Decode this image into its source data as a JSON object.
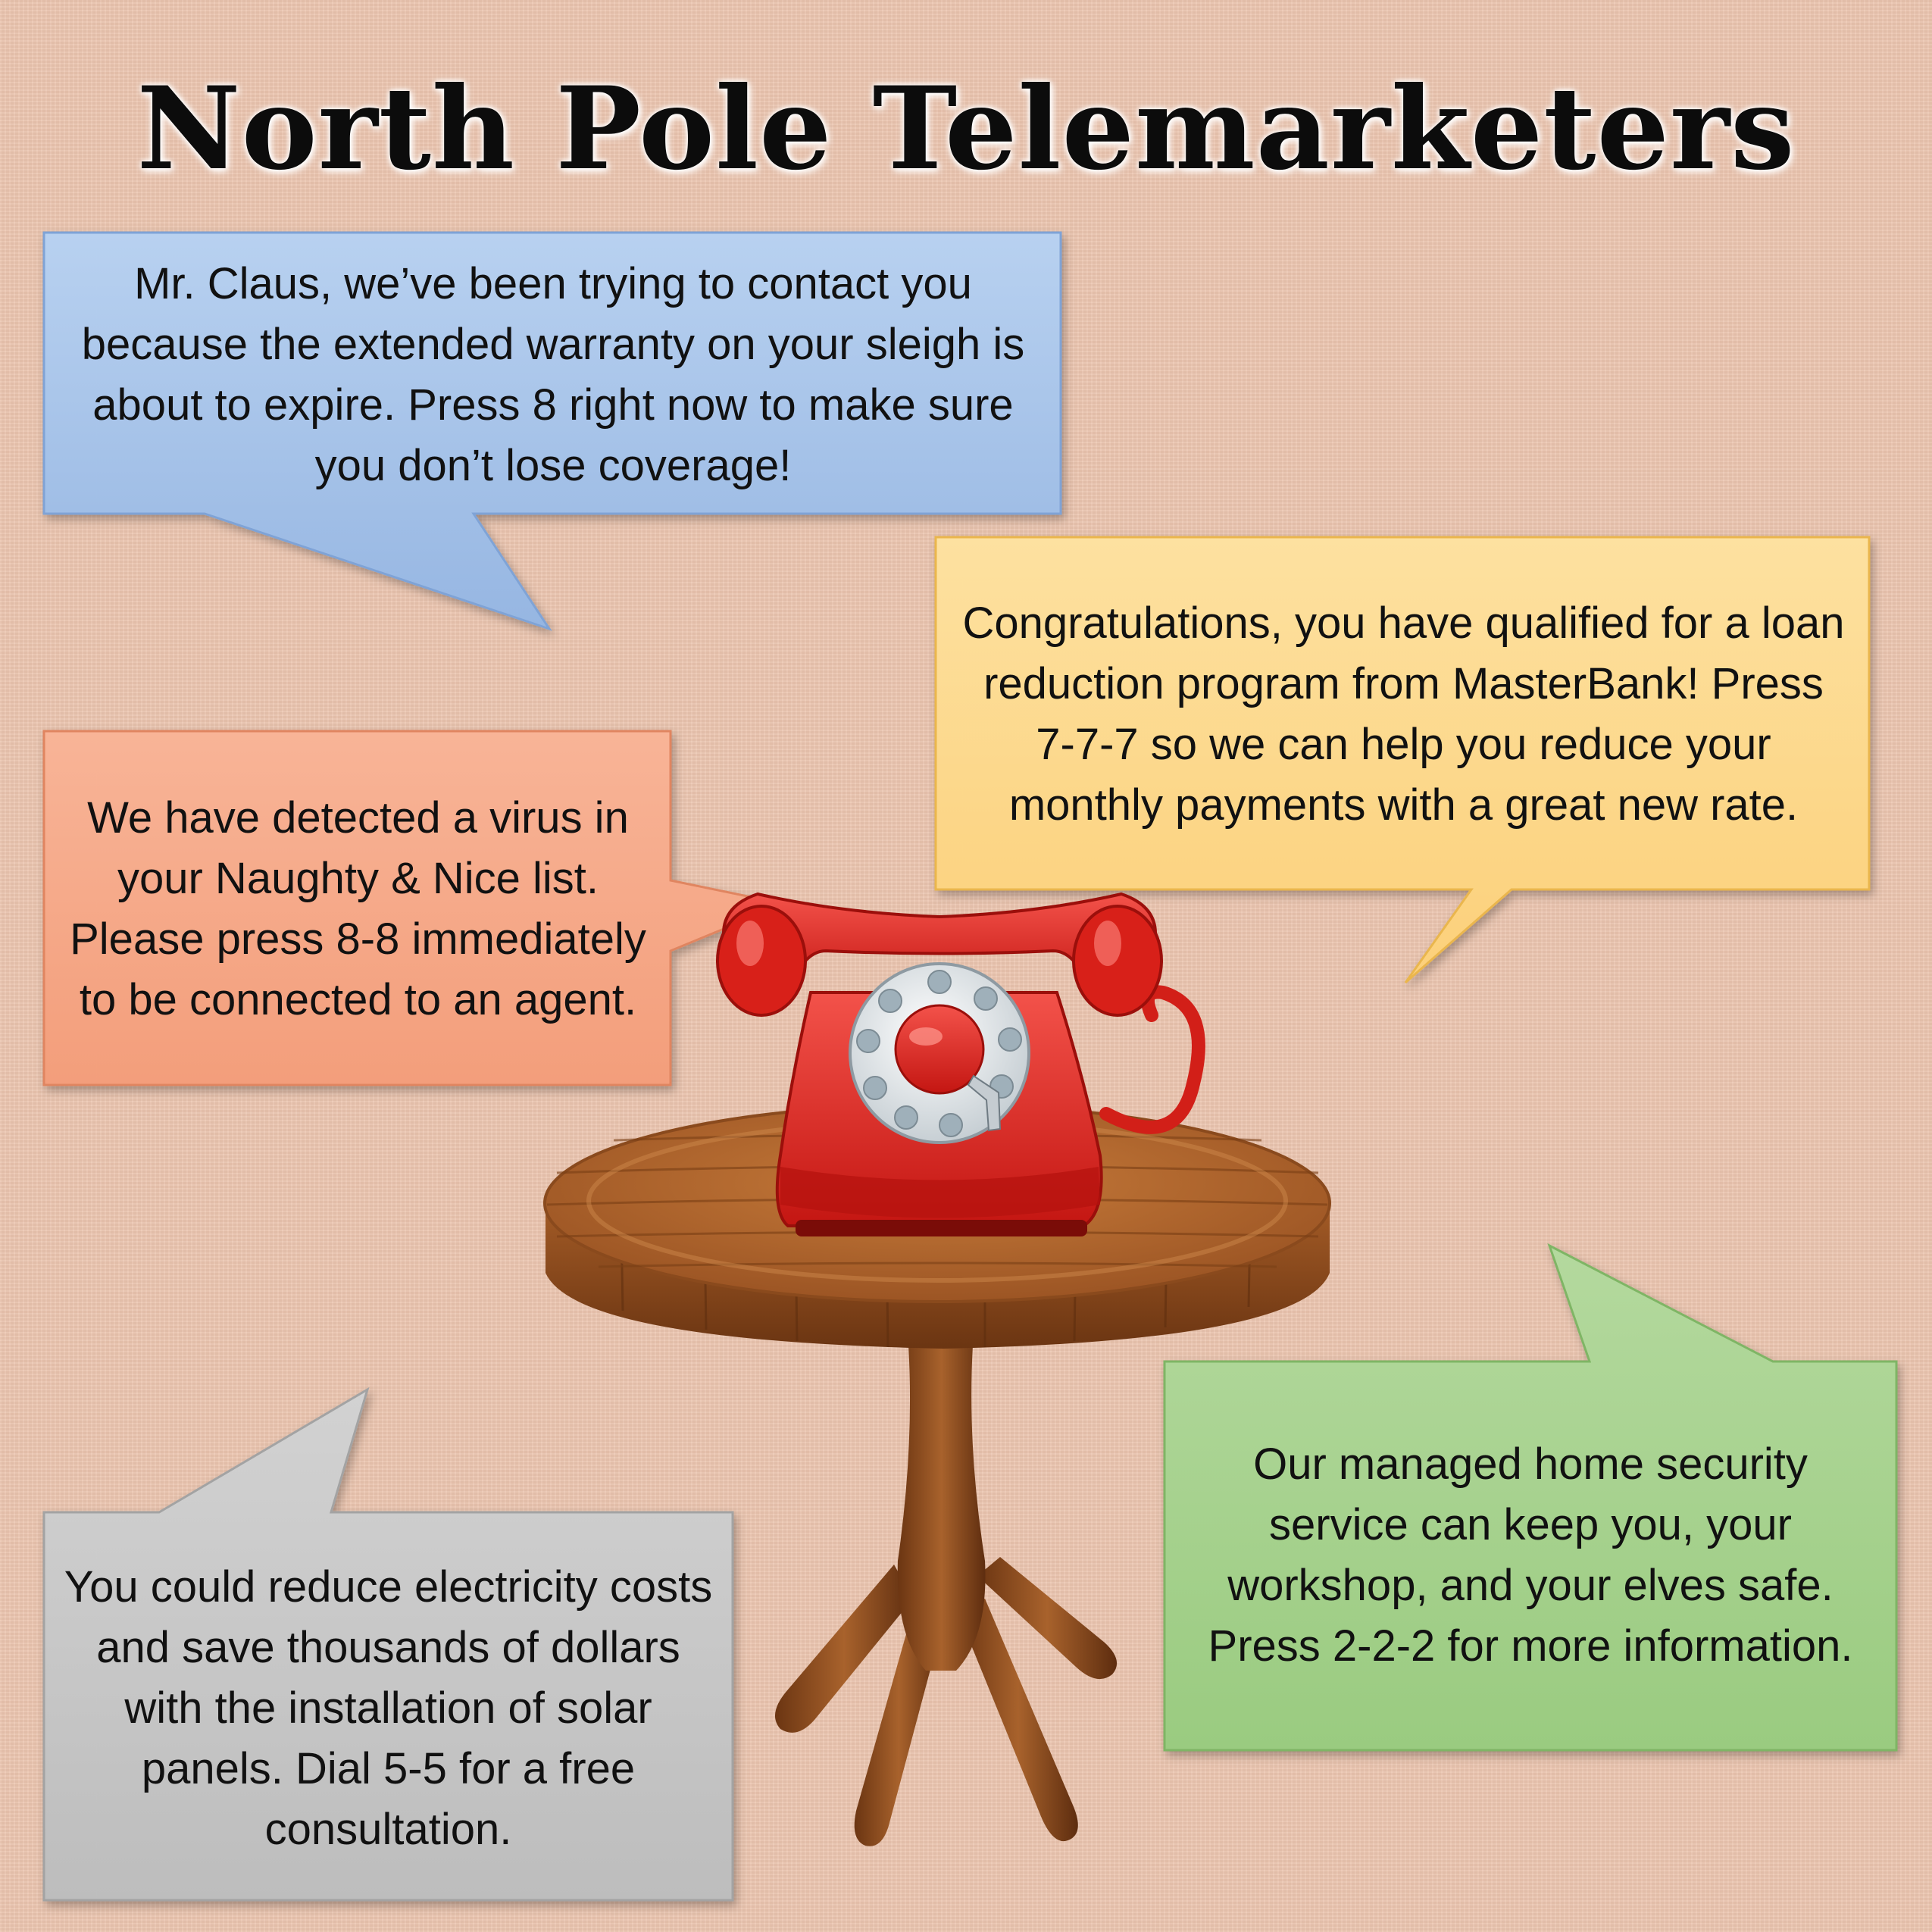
{
  "title": "North Pole Telemarketers",
  "colors": {
    "background": "#ecc6b0",
    "blue_bubble": "#a9c5ea",
    "yellow_bubble": "#fdd98c",
    "orange_bubble": "#f6aa8a",
    "green_bubble": "#a9d391",
    "gray_bubble": "#c8c8c8",
    "phone_red": "#e0261f",
    "table_wood": "#b56b2f"
  },
  "bubbles": {
    "warranty": "Mr. Claus, we’ve been trying to contact you because the extended warranty on your sleigh is about to expire. Press 8 right now to make sure you don’t lose coverage!",
    "loan": "Congratulations, you have qualified for a loan reduction program from MasterBank!  Press 7-7-7 so we can help you reduce your monthly payments with a great new rate.",
    "virus": "We have detected a virus in your Naughty & Nice list. Please press 8-8 immediately to be connected to an agent.",
    "security": "Our managed home security service can keep you, your workshop, and your elves safe. Press 2-2-2 for more information.",
    "solar": "You could reduce electricity costs and save thousands of dollars with the installation of solar panels. Dial 5-5 for a free consultation."
  },
  "illustration": {
    "phone_icon": "rotary-phone-icon",
    "table_icon": "round-wooden-table-icon"
  }
}
